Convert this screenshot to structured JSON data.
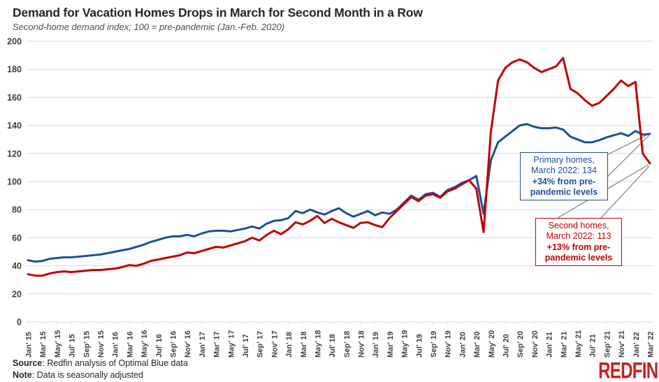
{
  "header": {
    "title": "Demand for Vacation Homes Drops in March for Second Month in a Row",
    "subtitle": "Second-home demand index; 100 = pre-pandemic (Jan.-Feb. 2020)"
  },
  "annotations": {
    "primary": {
      "line1": "Primary homes,",
      "line2": "March 2022: 134",
      "bold1": "+34% from pre-",
      "bold2": "pandemic levels",
      "value": 134
    },
    "second": {
      "line1": "Second homes,",
      "line2": "March 2022: 113",
      "bold1": "+13% from pre-",
      "bold2": "pandemic levels",
      "value": 113
    }
  },
  "footer": {
    "source_label": "Source",
    "source_rest": ": Redfin analysis of Optimal Blue data",
    "note_label": "Note",
    "note_rest": ": Data is seasonally adjusted",
    "logo_text": "REDFIN"
  },
  "colors": {
    "primary_line": "#1f4e9e",
    "second_line": "#c00000",
    "grid": "#d9d9d9",
    "axis_text": "#404040",
    "leader": "#808080",
    "logo_red": "#c82021"
  },
  "chart_data": {
    "type": "line",
    "title": "Demand for Vacation Homes Drops in March for Second Month in a Row",
    "subtitle": "Second-home demand index; 100 = pre-pandemic (Jan.-Feb. 2020)",
    "x_start": "Jan 2015",
    "x_end": "Mar 2022",
    "months_count": 87,
    "x_tick_every_months": 2,
    "x_tick_labels": [
      "Jan' 15",
      "Mar' 15",
      "May' 15",
      "Jul' 15",
      "Sep' 15",
      "Nov' 15",
      "Jan' 16",
      "Mar' 16",
      "May' 16",
      "Jul' 16",
      "Sep' 16",
      "Nov' 16",
      "Jan' 17",
      "Mar' 17",
      "May' 17",
      "Jul' 17",
      "Sep' 17",
      "Nov' 17",
      "Jan' 18",
      "Mar' 18",
      "May' 18",
      "Jul' 18",
      "Sep' 18",
      "Nov' 18",
      "Jan' 19",
      "Mar' 19",
      "May' 19",
      "Jul' 19",
      "Sep' 19",
      "Nov' 19",
      "Jan' 20",
      "Mar' 20",
      "May' 20",
      "Jul' 20",
      "Sep' 20",
      "Nov' 20",
      "Jan' 21",
      "Mar' 21",
      "May' 21",
      "Jul' 21",
      "Sep' 21",
      "Nov' 21",
      "Jan' 22",
      "Mar' 22"
    ],
    "ylim": [
      0,
      200
    ],
    "yticks": [
      0,
      20,
      40,
      60,
      80,
      100,
      120,
      140,
      160,
      180,
      200
    ],
    "grid": "horizontal",
    "legend_position": "none",
    "series": [
      {
        "name": "Primary homes",
        "color": "#1f4e9e",
        "values": [
          44,
          43,
          43.5,
          45,
          45.5,
          46,
          46,
          46.5,
          47,
          47.5,
          48,
          49,
          50,
          51,
          52,
          53.5,
          55,
          57,
          58.5,
          60,
          61,
          61,
          62,
          61,
          63,
          64.5,
          65,
          65,
          64.5,
          65.5,
          66.5,
          68,
          66.5,
          70,
          72,
          72.5,
          74,
          79,
          77.5,
          80,
          78,
          76.5,
          79,
          81,
          77.5,
          75,
          77,
          79,
          76,
          78,
          77,
          80,
          85,
          90,
          87,
          91,
          92,
          89,
          94,
          96,
          99,
          101,
          104,
          77,
          115,
          128,
          132,
          136,
          140,
          141,
          139,
          138,
          138,
          138.5,
          137,
          132,
          130,
          128,
          128,
          129.5,
          131.5,
          133,
          134.5,
          132.5,
          136,
          133.5,
          134
        ]
      },
      {
        "name": "Second homes",
        "color": "#c00000",
        "values": [
          34,
          33,
          33,
          34.5,
          35.5,
          36,
          35.5,
          36,
          36.5,
          37,
          37,
          37.5,
          38,
          39,
          40.5,
          40,
          41.5,
          43.5,
          44.5,
          45.5,
          46.5,
          47.5,
          49.5,
          49,
          50.5,
          52,
          53.5,
          53,
          54.5,
          56,
          57.5,
          60,
          58,
          62,
          65,
          62.5,
          66,
          71,
          69.5,
          72,
          75.5,
          70.5,
          73.5,
          71,
          69,
          67,
          70.5,
          71,
          69,
          67.5,
          74,
          79,
          84,
          89,
          86,
          90,
          91,
          88.5,
          93,
          95,
          98,
          101,
          95,
          64,
          135,
          172,
          181,
          185,
          187,
          185,
          181,
          178,
          180,
          182,
          188,
          166,
          163,
          158,
          154,
          156,
          161,
          166,
          172,
          168,
          171,
          120,
          113
        ]
      }
    ]
  }
}
